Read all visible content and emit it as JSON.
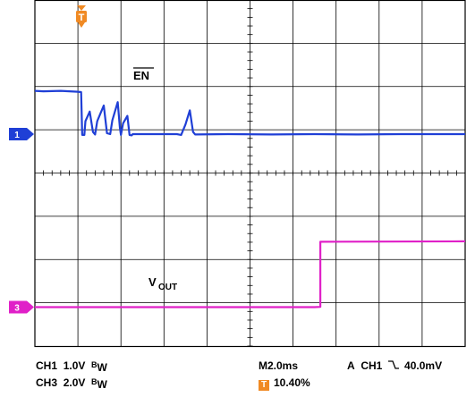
{
  "chart_data": {
    "type": "line",
    "grid": true,
    "divisions": {
      "x": 10,
      "y": 8
    },
    "xlim": [
      0,
      20
    ],
    "x_unit": "ms",
    "series": [
      {
        "name": "",
        "channel": "1",
        "color": "#1f3fd6",
        "label": "EN",
        "label_overline": true,
        "points": [
          [
            0.0,
            1.0
          ],
          [
            0.4,
            0.99
          ],
          [
            1.2,
            1.0
          ],
          [
            2.0,
            0.98
          ],
          [
            2.15,
            0.97
          ],
          [
            2.2,
            -0.02
          ],
          [
            2.3,
            -0.02
          ],
          [
            2.35,
            0.3
          ],
          [
            2.55,
            0.52
          ],
          [
            2.7,
            0.05
          ],
          [
            2.8,
            -0.01
          ],
          [
            2.9,
            0.3
          ],
          [
            3.2,
            0.66
          ],
          [
            3.35,
            0.02
          ],
          [
            3.5,
            0.0
          ],
          [
            3.6,
            0.32
          ],
          [
            3.85,
            0.74
          ],
          [
            3.95,
            0.15
          ],
          [
            4.0,
            -0.02
          ],
          [
            4.1,
            0.25
          ],
          [
            4.3,
            0.42
          ],
          [
            4.4,
            -0.02
          ],
          [
            4.5,
            -0.03
          ],
          [
            4.55,
            0.0
          ],
          [
            6.6,
            0.0
          ],
          [
            6.8,
            -0.02
          ],
          [
            7.0,
            0.22
          ],
          [
            7.2,
            0.55
          ],
          [
            7.35,
            0.05
          ],
          [
            7.45,
            -0.01
          ],
          [
            9.0,
            0.0
          ],
          [
            11.0,
            -0.01
          ],
          [
            13.0,
            0.0
          ],
          [
            15.0,
            -0.01
          ],
          [
            17.0,
            0.0
          ],
          [
            20.0,
            0.0
          ]
        ]
      },
      {
        "name": "",
        "channel": "3",
        "color": "#e020c8",
        "label": "V",
        "label_sub": "OUT",
        "points": [
          [
            0.0,
            0.0
          ],
          [
            6.0,
            0.0
          ],
          [
            13.0,
            0.0
          ],
          [
            13.27,
            0.01
          ],
          [
            13.27,
            3.02
          ],
          [
            16.0,
            3.03
          ],
          [
            20.0,
            3.04
          ]
        ]
      }
    ]
  },
  "readouts": {
    "ch1": "CH1",
    "ch1_scale": "1.0V",
    "ch1_bw_b": "B",
    "ch1_bw_w": "W",
    "ch3": "CH3",
    "ch3_scale": "2.0V",
    "ch3_bw_b": "B",
    "ch3_bw_w": "W",
    "timebase": "M2.0ms",
    "trigger_mode": "A",
    "trigger_source": "CH1",
    "trigger_level": "40.0mV",
    "trigger_position": "10.40%",
    "trigger_marker": "T",
    "ch1_marker": "1",
    "ch3_marker": "3"
  },
  "colors": {
    "trigger": "#f08a24",
    "grid": "#000000"
  },
  "icons": {
    "trigger_slope": "falling-edge-icon",
    "trigger_box": "trigger-t-icon"
  }
}
